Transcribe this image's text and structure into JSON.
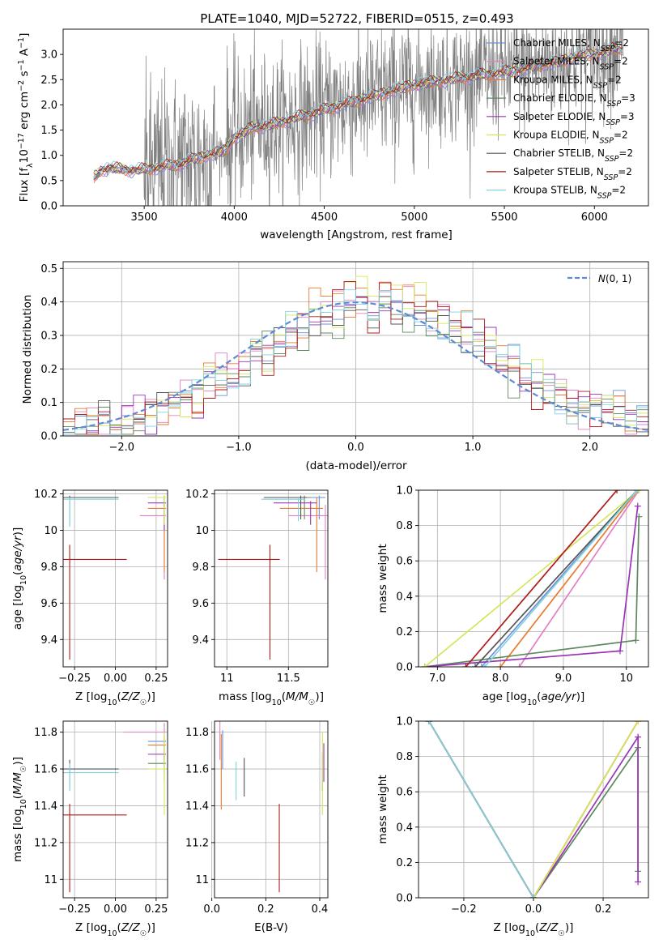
{
  "title": "PLATE=1040, MJD=52722, FIBERID=0515, z=0.493",
  "colors": {
    "Chabrier MILES": "#6f8fd6",
    "Salpeter MILES": "#e07fc4",
    "Kroupa MILES": "#e87a2e",
    "Chabrier ELODIE": "#5c8a5c",
    "Salpeter ELODIE": "#9a35b8",
    "Kroupa ELODIE": "#d4e65a",
    "Chabrier STELIB": "#555555",
    "Salpeter STELIB": "#b01a1a",
    "Kroupa STELIB": "#7fd3e0",
    "data": "#808080",
    "gaussian": "#5f8bd6"
  },
  "chart_data": [
    {
      "id": "spectrum",
      "type": "line",
      "xlabel": "wavelength [Angstrom, rest frame]",
      "ylabel": "Flux [f_λ10^-17 erg cm^-2 s^-1 A^-1]",
      "xlim": [
        3050,
        6300
      ],
      "ylim": [
        0,
        3.5
      ],
      "xticks": [
        3500,
        4000,
        4500,
        5000,
        5500,
        6000
      ],
      "yticks": [
        0.0,
        0.5,
        1.0,
        1.5,
        2.0,
        2.5,
        3.0
      ],
      "legend_position": "top-right",
      "legend": [
        {
          "base": "Chabrier MILES, N",
          "sub": "SSP",
          "tail": "=2"
        },
        {
          "base": "Salpeter MILES, N",
          "sub": "SSP",
          "tail": "=2"
        },
        {
          "base": "Kroupa MILES, N",
          "sub": "SSP",
          "tail": "=2"
        },
        {
          "base": "Chabrier ELODIE, N",
          "sub": "SSP",
          "tail": "=3"
        },
        {
          "base": "Salpeter ELODIE, N",
          "sub": "SSP",
          "tail": "=3"
        },
        {
          "base": "Kroupa ELODIE, N",
          "sub": "SSP",
          "tail": "=2"
        },
        {
          "base": "Chabrier STELIB, N",
          "sub": "SSP",
          "tail": "=2"
        },
        {
          "base": "Salpeter STELIB, N",
          "sub": "SSP",
          "tail": "=2"
        },
        {
          "base": "Kroupa STELIB, N",
          "sub": "SSP",
          "tail": "=2"
        }
      ],
      "model_continuum": {
        "x": [
          3220,
          3260,
          3300,
          3350,
          3400,
          3450,
          3500,
          3550,
          3600,
          3650,
          3700,
          3750,
          3800,
          3850,
          3900,
          3950,
          4000,
          4100,
          4200,
          4300,
          4400,
          4500,
          4600,
          4700,
          4800,
          4900,
          5000,
          5100,
          5200,
          5300,
          5400,
          5500,
          5600,
          5700,
          5800,
          5900,
          6000,
          6100,
          6150
        ],
        "y": [
          0.55,
          0.7,
          0.75,
          0.73,
          0.72,
          0.7,
          0.72,
          0.75,
          0.78,
          0.8,
          0.82,
          0.9,
          0.95,
          1.0,
          1.05,
          1.1,
          1.35,
          1.55,
          1.6,
          1.7,
          1.8,
          1.9,
          2.0,
          2.1,
          2.2,
          2.3,
          2.4,
          2.45,
          2.5,
          2.55,
          2.6,
          2.65,
          2.7,
          2.8,
          2.85,
          2.95,
          3.0,
          3.1,
          3.1
        ]
      },
      "data_range": [
        3220,
        6160
      ]
    },
    {
      "id": "residuals",
      "type": "line",
      "xlabel": "(data-model)/error",
      "ylabel": "Normed distribution",
      "xlim": [
        -2.5,
        2.5
      ],
      "ylim": [
        0,
        0.52
      ],
      "xticks": [
        -2,
        -1,
        0,
        1,
        2
      ],
      "yticks": [
        0.0,
        0.1,
        0.2,
        0.3,
        0.4,
        0.5
      ],
      "grid": true,
      "legend_position": "top-right",
      "legend_label": "N(0,1)",
      "gaussian": {
        "mean": 0,
        "sigma": 1
      }
    },
    {
      "id": "age-metallicity",
      "type": "scatter",
      "xlabel": "Z [log10(Z/Z☉)]",
      "ylabel": "age [log10(age/yr)]",
      "xlim": [
        -0.32,
        0.32
      ],
      "ylim": [
        9.25,
        10.22
      ],
      "xticks": [
        -0.25,
        0.0,
        0.25
      ],
      "xticklabels": [
        "−0.25",
        "0.00",
        "0.25"
      ],
      "yticks": [
        9.4,
        9.6,
        9.8,
        10.0,
        10.2
      ],
      "grid": true
    },
    {
      "id": "age-mass",
      "type": "scatter",
      "xlabel": "mass [log10(M/M☉)]",
      "xlim": [
        10.9,
        11.82
      ],
      "ylim": [
        9.25,
        10.22
      ],
      "xticks": [
        11.0,
        11.5
      ],
      "yticks": [
        9.4,
        9.6,
        9.8,
        10.0,
        10.2
      ],
      "grid": true
    },
    {
      "id": "weight-age",
      "type": "line",
      "xlabel": "age [log10(age/yr)]",
      "ylabel": "mass weight",
      "xlim": [
        6.7,
        10.35
      ],
      "ylim": [
        0,
        1
      ],
      "xticks": [
        7,
        8,
        9,
        10
      ],
      "yticks": [
        0.0,
        0.2,
        0.4,
        0.6,
        0.8,
        1.0
      ],
      "grid": true
    },
    {
      "id": "mass-metallicity",
      "type": "scatter",
      "xlabel": "Z [log10(Z/Z☉)]",
      "ylabel": "mass [log10(M/M☉)]",
      "xlim": [
        -0.32,
        0.32
      ],
      "ylim": [
        10.9,
        11.86
      ],
      "xticks": [
        -0.25,
        0.0,
        0.25
      ],
      "xticklabels": [
        "−0.25",
        "0.00",
        "0.25"
      ],
      "yticks": [
        11.0,
        11.2,
        11.4,
        11.6,
        11.8
      ],
      "grid": true
    },
    {
      "id": "mass-ebv",
      "type": "scatter",
      "xlabel": "E(B-V)",
      "xlim": [
        0.01,
        0.43
      ],
      "ylim": [
        10.9,
        11.86
      ],
      "xticks": [
        0.0,
        0.2,
        0.4
      ],
      "yticks": [
        11.0,
        11.2,
        11.4,
        11.6,
        11.8
      ],
      "grid": true
    },
    {
      "id": "weight-metallicity",
      "type": "line",
      "xlabel": "Z [log10(Z/Z☉)]",
      "ylabel": "mass weight",
      "xlim": [
        -0.33,
        0.33
      ],
      "ylim": [
        0,
        1
      ],
      "xticks": [
        -0.2,
        0.0,
        0.2
      ],
      "xticklabels": [
        "−0.2",
        "0.0",
        "0.2"
      ],
      "yticks": [
        0.0,
        0.2,
        0.4,
        0.6,
        0.8,
        1.0
      ],
      "grid": true
    }
  ],
  "models": [
    {
      "name": "Chabrier MILES",
      "age": [
        10.18,
        10.18
      ],
      "age_err": 0.02,
      "Z": [
        0.3,
        0.3
      ],
      "mass": [
        11.75,
        11.75
      ],
      "ebv": 0.04,
      "w_age": [
        [
          7.7,
          0.0
        ],
        [
          10.17,
          1.0
        ]
      ],
      "w_Z": [
        [
          -0.3,
          1.0
        ],
        [
          0.0,
          0.0
        ],
        [
          0.3,
          1.0
        ]
      ]
    },
    {
      "name": "Salpeter MILES",
      "age": [
        10.08,
        10.08
      ],
      "age_err": 0.02,
      "Z": [
        0.3,
        0.3
      ],
      "mass": [
        11.8,
        11.8
      ],
      "ebv": 0.03,
      "w_age": [
        [
          8.3,
          0.0
        ],
        [
          10.2,
          1.0
        ]
      ],
      "w_Z": [
        [
          -0.3,
          1.0
        ],
        [
          0.0,
          0.0
        ],
        [
          0.3,
          1.0
        ]
      ]
    },
    {
      "name": "Kroupa MILES",
      "age": [
        10.12,
        10.12
      ],
      "age_err": 0.02,
      "Z": [
        0.3,
        0.3
      ],
      "mass": [
        11.73,
        11.73
      ],
      "ebv": 0.035,
      "w_age": [
        [
          8.0,
          0.0
        ],
        [
          10.18,
          1.0
        ]
      ],
      "w_Z": [
        [
          -0.3,
          1.0
        ],
        [
          0.0,
          0.0
        ],
        [
          0.3,
          1.0
        ]
      ]
    },
    {
      "name": "Chabrier ELODIE",
      "age": [
        10.18,
        10.18
      ],
      "age_err": 0.02,
      "Z": [
        0.3,
        0.3
      ],
      "mass": [
        11.63,
        11.63
      ],
      "ebv": 0.41,
      "w_age": [
        [
          6.8,
          0.0
        ],
        [
          10.15,
          0.15
        ],
        [
          10.2,
          0.85
        ]
      ],
      "w_Z": [
        [
          0.0,
          0.0
        ],
        [
          0.3,
          0.85
        ],
        [
          0.3,
          0.15
        ]
      ]
    },
    {
      "name": "Salpeter ELODIE",
      "age": [
        10.15,
        10.15
      ],
      "age_err": 0.02,
      "Z": [
        0.3,
        0.3
      ],
      "mass": [
        11.68,
        11.68
      ],
      "ebv": 0.415,
      "w_age": [
        [
          6.8,
          0.0
        ],
        [
          9.9,
          0.09
        ],
        [
          10.18,
          0.91
        ]
      ],
      "w_Z": [
        [
          0.0,
          0.0
        ],
        [
          0.3,
          0.91
        ],
        [
          0.3,
          0.09
        ]
      ]
    },
    {
      "name": "Kroupa ELODIE",
      "age": [
        10.18,
        10.18
      ],
      "age_err": 0.02,
      "Z": [
        0.3,
        0.3
      ],
      "mass": [
        11.6,
        11.6
      ],
      "ebv": 0.41,
      "w_age": [
        [
          6.8,
          0.0
        ],
        [
          10.2,
          1.0
        ]
      ],
      "w_Z": [
        [
          0.0,
          0.0
        ],
        [
          0.3,
          1.0
        ]
      ]
    },
    {
      "name": "Chabrier STELIB",
      "age": [
        10.18,
        10.18
      ],
      "age_err": 0.02,
      "Z": [
        -0.28,
        -0.28
      ],
      "mass": [
        11.6,
        11.6
      ],
      "ebv": 0.12,
      "w_age": [
        [
          7.6,
          0.0
        ],
        [
          10.17,
          1.0
        ]
      ],
      "w_Z": [
        [
          -0.3,
          1.0
        ],
        [
          0.0,
          0.0
        ]
      ]
    },
    {
      "name": "Salpeter STELIB",
      "age": [
        9.84,
        9.84
      ],
      "age_err": 0.05,
      "Z": [
        -0.28,
        -0.28
      ],
      "mass": [
        11.35,
        11.35
      ],
      "ebv": 0.25,
      "w_age": [
        [
          7.45,
          0.0
        ],
        [
          9.85,
          1.0
        ]
      ],
      "w_Z": [
        [
          -0.3,
          1.0
        ],
        [
          0.0,
          0.0
        ]
      ]
    },
    {
      "name": "Kroupa STELIB",
      "age": [
        10.17,
        10.17
      ],
      "age_err": 0.02,
      "Z": [
        -0.28,
        -0.28
      ],
      "mass": [
        11.58,
        11.58
      ],
      "ebv": 0.09,
      "w_age": [
        [
          7.75,
          0.0
        ],
        [
          10.17,
          1.0
        ]
      ],
      "w_Z": [
        [
          -0.3,
          1.0
        ],
        [
          0.0,
          0.0
        ]
      ]
    }
  ]
}
